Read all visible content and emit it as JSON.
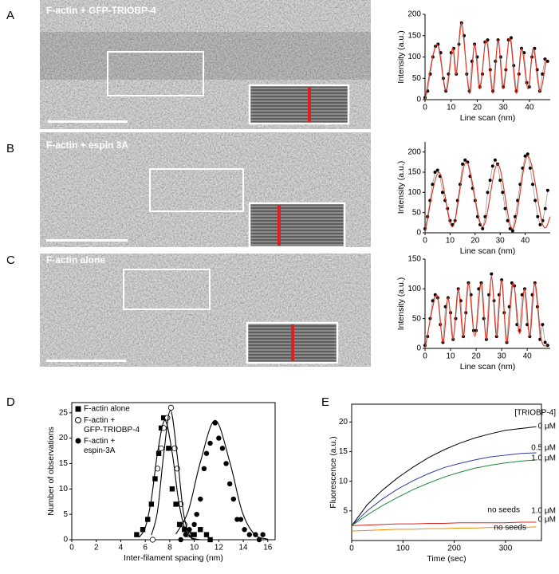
{
  "figure": {
    "panel_labels": [
      "A",
      "B",
      "C",
      "D",
      "E"
    ],
    "micrographs": [
      {
        "label": "F-actin + GFP-TRIOBP-4"
      },
      {
        "label": "F-actin + espin 3A"
      },
      {
        "label": "F-actin alone"
      }
    ]
  },
  "chart_data": [
    {
      "type": "line",
      "xlabel": "Line scan (nm)",
      "ylabel": "Intensity (a.u.)",
      "xlim": [
        0,
        48
      ],
      "ylim": [
        0,
        200
      ],
      "xticks": [
        0,
        10,
        20,
        30,
        40
      ],
      "yticks": [
        0,
        50,
        100,
        150,
        200
      ],
      "series": [
        {
          "color": "#000000",
          "line_color": "#999999",
          "marker": "circle",
          "x": [
            0,
            1,
            2,
            3,
            4,
            5,
            6,
            7,
            8,
            9,
            10,
            11,
            12,
            13,
            14,
            15,
            16,
            17,
            18,
            19,
            20,
            21,
            22,
            23,
            24,
            25,
            26,
            27,
            28,
            29,
            30,
            31,
            32,
            33,
            34,
            35,
            36,
            37,
            38,
            39,
            40,
            41,
            42,
            43,
            44,
            45,
            46,
            47
          ],
          "values": [
            5,
            20,
            60,
            100,
            125,
            130,
            110,
            50,
            20,
            60,
            110,
            120,
            60,
            130,
            180,
            150,
            60,
            20,
            90,
            130,
            100,
            30,
            60,
            135,
            140,
            70,
            20,
            90,
            140,
            100,
            30,
            70,
            140,
            145,
            80,
            20,
            60,
            120,
            110,
            40,
            30,
            100,
            120,
            70,
            20,
            60,
            95,
            90
          ]
        },
        {
          "color": "#e0301e",
          "smooth": true,
          "x": [
            0,
            4.5,
            8,
            10.5,
            12,
            14,
            17,
            19,
            21,
            23.5,
            26,
            28,
            30,
            32.5,
            35,
            37,
            39.5,
            41.5,
            44,
            46.5
          ],
          "values": [
            0,
            130,
            20,
            120,
            60,
            180,
            15,
            130,
            25,
            140,
            15,
            140,
            25,
            145,
            15,
            120,
            25,
            120,
            20,
            95
          ]
        }
      ]
    },
    {
      "type": "line",
      "xlabel": "Line scan (nm)",
      "ylabel": "Intensity (a.u.)",
      "xlim": [
        0,
        50
      ],
      "ylim": [
        0,
        225
      ],
      "xticks": [
        0,
        10,
        20,
        30,
        40
      ],
      "yticks": [
        0,
        50,
        100,
        150,
        200
      ],
      "series": [
        {
          "color": "#000000",
          "line_color": "#999999",
          "marker": "circle",
          "x": [
            0,
            1,
            2,
            3,
            4,
            5,
            6,
            7,
            8,
            9,
            10,
            11,
            12,
            13,
            14,
            15,
            16,
            17,
            18,
            19,
            20,
            21,
            22,
            23,
            24,
            25,
            26,
            27,
            28,
            29,
            30,
            31,
            32,
            33,
            34,
            35,
            36,
            37,
            38,
            39,
            40,
            41,
            42,
            43,
            44,
            45,
            46,
            47,
            48,
            49
          ],
          "values": [
            10,
            40,
            80,
            120,
            150,
            155,
            140,
            100,
            80,
            60,
            30,
            20,
            30,
            80,
            120,
            170,
            180,
            175,
            140,
            110,
            80,
            40,
            20,
            10,
            40,
            100,
            130,
            165,
            180,
            170,
            130,
            100,
            60,
            30,
            10,
            5,
            40,
            80,
            120,
            160,
            190,
            195,
            160,
            120,
            80,
            40,
            20,
            30,
            60,
            105
          ]
        },
        {
          "color": "#e0301e",
          "smooth": true,
          "x": [
            0,
            5.5,
            11,
            16.5,
            23,
            29,
            35,
            41,
            47,
            50
          ],
          "values": [
            0,
            150,
            15,
            175,
            15,
            170,
            10,
            190,
            20,
            40
          ]
        }
      ]
    },
    {
      "type": "line",
      "xlabel": "Line scan (nm)",
      "ylabel": "Intensity (a.u.)",
      "xlim": [
        0,
        49
      ],
      "ylim": [
        0,
        150
      ],
      "xticks": [
        0,
        10,
        20,
        30,
        40
      ],
      "yticks": [
        0,
        50,
        100,
        150
      ],
      "series": [
        {
          "color": "#000000",
          "line_color": "#999999",
          "marker": "circle",
          "x": [
            0,
            1,
            2,
            3,
            4,
            5,
            6,
            7,
            8,
            9,
            10,
            11,
            12,
            13,
            14,
            15,
            16,
            17,
            18,
            19,
            20,
            21,
            22,
            23,
            24,
            25,
            26,
            27,
            28,
            29,
            30,
            31,
            32,
            33,
            34,
            35,
            36,
            37,
            38,
            39,
            40,
            41,
            42,
            43,
            44,
            45,
            46,
            47,
            48
          ],
          "values": [
            5,
            20,
            50,
            80,
            90,
            85,
            40,
            10,
            70,
            85,
            60,
            15,
            50,
            100,
            80,
            20,
            60,
            110,
            90,
            30,
            30,
            100,
            110,
            50,
            15,
            90,
            125,
            80,
            20,
            90,
            115,
            60,
            10,
            70,
            110,
            105,
            40,
            30,
            90,
            100,
            40,
            20,
            90,
            110,
            70,
            15,
            40,
            10,
            5
          ]
        },
        {
          "color": "#e0301e",
          "smooth": true,
          "x": [
            0,
            4.5,
            7,
            9,
            11,
            13,
            15,
            17,
            19.5,
            22,
            24,
            26,
            28,
            30,
            32,
            34.5,
            37,
            39,
            41,
            43,
            45.5,
            48
          ],
          "values": [
            0,
            90,
            10,
            85,
            15,
            100,
            20,
            110,
            20,
            110,
            15,
            120,
            20,
            115,
            10,
            110,
            25,
            100,
            20,
            110,
            15,
            5
          ]
        }
      ]
    },
    {
      "type": "scatter",
      "xlabel": "Inter-filament spacing (nm)",
      "ylabel": "Number of observations",
      "xlim": [
        0,
        16.6
      ],
      "ylim": [
        0,
        27
      ],
      "xticks": [
        0,
        2,
        4,
        6,
        8,
        10,
        12,
        14,
        16
      ],
      "yticks": [
        0,
        5,
        10,
        15,
        20,
        25
      ],
      "legend": "upper left",
      "series": [
        {
          "name": "F-actin alone",
          "color": "#000000",
          "marker": "square",
          "x": [
            5.3,
            5.8,
            6.2,
            6.5,
            6.8,
            7.1,
            7.3,
            7.5,
            7.9,
            8.2,
            8.5,
            8.8,
            9.2,
            9.6,
            10,
            10.5,
            11,
            11.3
          ],
          "values": [
            1,
            2,
            4,
            7,
            12,
            17,
            22,
            24,
            18,
            10,
            7,
            3,
            2,
            1,
            1,
            2,
            1,
            0
          ]
        },
        {
          "name": "F-actin + GFP-TRIOBP-4",
          "color": "#000000",
          "marker": "open-circle",
          "x": [
            6.6,
            7,
            7.3,
            7.5,
            7.8,
            8.1,
            8.4,
            8.6,
            8.9,
            9.2,
            9.5
          ],
          "values": [
            0,
            14,
            18,
            22,
            24,
            26,
            18,
            14,
            7,
            3,
            1
          ]
        },
        {
          "name": "F-actin + espin-3A",
          "color": "#000000",
          "marker": "circle",
          "x": [
            8.9,
            9.3,
            9.6,
            10,
            10.2,
            10.5,
            10.8,
            11,
            11.3,
            11.7,
            12,
            12.3,
            12.6,
            12.9,
            13.2,
            13.5,
            13.8,
            14.1,
            14.5,
            15,
            15.3,
            15.6
          ],
          "values": [
            0,
            1,
            2,
            3,
            5,
            8,
            14,
            17,
            19,
            23,
            20,
            18,
            15,
            11,
            8,
            4,
            4,
            2,
            1,
            1,
            0,
            1
          ]
        },
        {
          "color": "#000000",
          "smooth": true,
          "x": [
            5.5,
            6,
            6.5,
            7,
            7.6,
            8.2,
            8.7,
            9.2,
            9.7,
            10.5
          ],
          "values": [
            0.5,
            2.4,
            8,
            17.1,
            23.5,
            17.1,
            8,
            2.4,
            0.5,
            0
          ]
        },
        {
          "color": "#000000",
          "smooth": true,
          "x": [
            6.5,
            7,
            7.5,
            8.05,
            8.6,
            9.1,
            9.6,
            10
          ],
          "values": [
            0.9,
            5.6,
            16.7,
            25.5,
            16.7,
            5.6,
            0.9,
            0
          ]
        },
        {
          "color": "#000000",
          "smooth": true,
          "x": [
            8.5,
            9.5,
            10.5,
            11.7,
            12.9,
            13.9,
            14.9,
            16
          ],
          "values": [
            1.1,
            5.6,
            15.3,
            23.5,
            15.3,
            5.6,
            1.1,
            0.1
          ]
        }
      ]
    },
    {
      "type": "line",
      "xlabel": "Time (sec)",
      "ylabel": "Fluorescence (a.u.)",
      "xlim": [
        0,
        370
      ],
      "ylim": [
        0,
        23
      ],
      "xticks": [
        0,
        100,
        200,
        300
      ],
      "yticks": [
        5,
        10,
        15,
        20
      ],
      "legend_title": "[TRIOBP-4]",
      "annotations": [
        {
          "text": "no seeds"
        },
        {
          "text": "no seeds"
        }
      ],
      "x": [
        0,
        30,
        60,
        90,
        120,
        150,
        180,
        210,
        240,
        270,
        300,
        330,
        360
      ],
      "series": [
        {
          "name": "0 μM",
          "color": "#000000",
          "values": [
            2.5,
            6,
            8.5,
            10.6,
            12.4,
            14,
            15.3,
            16.4,
            17.3,
            18,
            18.6,
            18.9,
            19.2
          ]
        },
        {
          "name": "0.5 μM",
          "color": "#2c3e9e",
          "values": [
            2.5,
            5,
            7,
            8.7,
            10.1,
            11.3,
            12.3,
            13,
            13.6,
            14.1,
            14.4,
            14.7,
            14.8
          ]
        },
        {
          "name": "1.0 μM",
          "color": "#1e8a3a",
          "values": [
            2.5,
            4.3,
            5.9,
            7.3,
            8.6,
            9.7,
            10.7,
            11.5,
            12.2,
            12.7,
            13.1,
            13.4,
            13.6
          ]
        },
        {
          "name": "1.0 μM",
          "color": "#e02020",
          "values": [
            2.5,
            2.6,
            2.7,
            2.8,
            2.8,
            2.9,
            2.9,
            3,
            3,
            3,
            3,
            3.1,
            3.1
          ]
        },
        {
          "name": "0 μM",
          "color": "#f08c00",
          "values": [
            1.6,
            1.7,
            1.8,
            1.9,
            1.9,
            2,
            2,
            2.1,
            2.1,
            2.2,
            2.2,
            2.2,
            2.3
          ]
        }
      ]
    }
  ]
}
